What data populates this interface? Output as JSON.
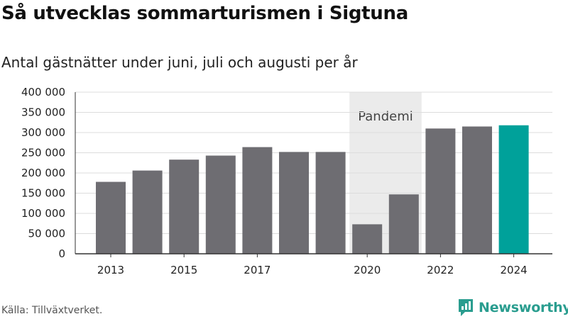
{
  "title": "Så utvecklas sommarturismen i Sigtuna",
  "subtitle": "Antal gästnätter under juni, juli och augusti per år",
  "source": "Källa: Tillväxtverket.",
  "brand": "Newsworthy",
  "colors": {
    "bar": "#6e6d72",
    "highlight": "#00a19a",
    "shade": "#ebebeb",
    "brand": "#2a9d8f"
  },
  "chart_data": {
    "type": "bar",
    "title": "Så utvecklas sommarturismen i Sigtuna",
    "subtitle": "Antal gästnätter under juni, juli och augusti per år",
    "xlabel": "",
    "ylabel": "",
    "categories": [
      "2013",
      "2014",
      "2015",
      "2016",
      "2017",
      "2018",
      "2019",
      "2020",
      "2021",
      "2022",
      "2023",
      "2024"
    ],
    "values": [
      178000,
      206000,
      233000,
      243000,
      264000,
      252000,
      252000,
      73000,
      147000,
      310000,
      315000,
      318000
    ],
    "highlight": "2024",
    "ylim": [
      0,
      400000
    ],
    "yticks": [
      0,
      50000,
      100000,
      150000,
      200000,
      250000,
      300000,
      350000,
      400000
    ],
    "ytick_labels": [
      "0",
      "50 000",
      "100 000",
      "150 000",
      "200 000",
      "250 000",
      "300 000",
      "350 000",
      "400 000"
    ],
    "xtick_labels": [
      "2013",
      "2015",
      "2017",
      "2020",
      "2022",
      "2024"
    ],
    "grid": true,
    "annotation": {
      "label": "Pandemi",
      "from": "2020",
      "to": "2021"
    }
  }
}
